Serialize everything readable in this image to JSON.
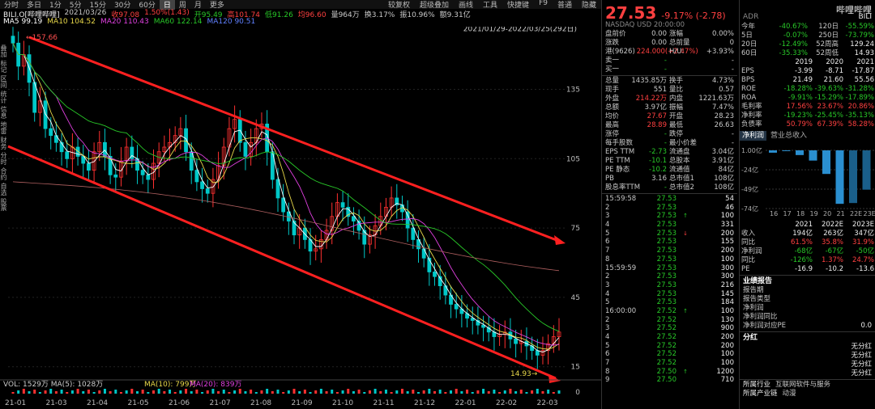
{
  "topbar": {
    "tabs": [
      "分时",
      "多日",
      "1分",
      "5分",
      "15分",
      "30分",
      "60分",
      "日",
      "周",
      "月",
      "更多"
    ],
    "active_tab": "日",
    "tools": [
      "较复权",
      "超级叠加",
      "画线",
      "工具",
      "快捷键",
      "F9",
      "普通",
      "隐藏"
    ]
  },
  "infobar": {
    "symbol": "BILI.O[哔哩哔哩]",
    "date": "2021/03/26",
    "close": "收97.08",
    "change": "1.50%(1.43)",
    "open": "开95.49",
    "high": "高101.74",
    "low": "低91.26",
    "avg": "均96.60",
    "vol": "量964万",
    "turn": "换3.17%",
    "amp": "振10.96%",
    "amt": "额9.31亿"
  },
  "mabar": [
    {
      "label": "MA5",
      "value": "99.19",
      "color": "#ffffff"
    },
    {
      "label": "MA10",
      "value": "104.52",
      "color": "#e8d84a"
    },
    {
      "label": "MA20",
      "value": "110.43",
      "color": "#e040e0"
    },
    {
      "label": "MA60",
      "value": "122.14",
      "color": "#28c828"
    },
    {
      "label": "MA120",
      "value": "90.51",
      "color": "#6080ff"
    }
  ],
  "chart_data": {
    "type": "candlestick",
    "range_label": "2021/01/29-2022/03/25(292日)",
    "y_ticks": [
      135,
      105,
      75,
      45,
      15
    ],
    "x_ticks": [
      "21-01",
      "21-03",
      "21-04",
      "21-05",
      "21-06",
      "21-07",
      "21-08",
      "21-09",
      "21-10",
      "21-11",
      "21-12",
      "22-01",
      "22-02",
      "22-03"
    ],
    "high_label": "157.66",
    "low_label": "14.93",
    "vol_label": "VOL: 1529万",
    "vol_ma5": "MA(5): 1028万",
    "vol_ma10": "MA(10): 799万",
    "vol_ma20": "MA(20): 839万",
    "vol_zero": "0",
    "closes": [
      155,
      145,
      150,
      138,
      125,
      130,
      118,
      115,
      112,
      108,
      105,
      110,
      106,
      103,
      100,
      108,
      112,
      106,
      98,
      97,
      104,
      110,
      105,
      100,
      98,
      96,
      103,
      108,
      110,
      112,
      115,
      118,
      108,
      100,
      95,
      92,
      90,
      96,
      102,
      110,
      118,
      122,
      112,
      106,
      112,
      118,
      120,
      108,
      96,
      88,
      82,
      78,
      72,
      75,
      70,
      65,
      66,
      70,
      74,
      80,
      86,
      84,
      80,
      78,
      74,
      68,
      72,
      76,
      80,
      84,
      88,
      85,
      82,
      75,
      70,
      66,
      62,
      56,
      54,
      50,
      46,
      42,
      40,
      38,
      36,
      35,
      33,
      32,
      30,
      28,
      29,
      30,
      27,
      25,
      26,
      24,
      22,
      20,
      22,
      25,
      28,
      30
    ]
  },
  "quote": {
    "price": "27.53",
    "change": "-9.17% (-2.78)",
    "name": "哔哩哔哩",
    "code": "BILI",
    "market": "NASDAQ  USD  20:00:00",
    "adr": "ADR"
  },
  "stats_a": [
    [
      "盘前价",
      "0.00",
      "涨幅",
      "0.00%"
    ],
    [
      "涨跌",
      "0.00",
      "总前量",
      "0"
    ],
    [
      "港(9626)",
      "224.000(+2.47%)",
      "H/U:",
      "+3.93%"
    ],
    [
      "卖一",
      "-",
      "",
      "-"
    ],
    [
      "买一",
      "-",
      "",
      "-"
    ]
  ],
  "stats_b": [
    [
      "总量",
      "1435.85万",
      "换手",
      "4.73%"
    ],
    [
      "现手",
      "551",
      "量比",
      "0.57"
    ],
    [
      "外盘",
      "214.22万",
      "内盘",
      "1221.63万"
    ],
    [
      "总额",
      "3.97亿",
      "振幅",
      "7.47%"
    ],
    [
      "均价",
      "27.67",
      "开盘",
      "28.23"
    ],
    [
      "最高",
      "28.89",
      "最低",
      "26.63"
    ],
    [
      "涨停",
      "-",
      "跌停",
      "-"
    ],
    [
      "每手股数",
      "-",
      "最小价差",
      "-"
    ],
    [
      "EPS TTM",
      "-2.73",
      "流通盘",
      "3.04亿"
    ],
    [
      "PE TTM",
      "-10.1",
      "总股本",
      "3.91亿"
    ],
    [
      "PE 静态",
      "-10.2",
      "流通值",
      "84亿"
    ],
    [
      "PB",
      "3.16",
      "总市值1",
      "108亿"
    ],
    [
      "股息率TTM",
      "-",
      "总市值2",
      "108亿"
    ]
  ],
  "ticks": [
    [
      "15:59:58",
      "27.53",
      "54",
      ""
    ],
    [
      "2",
      "27.53",
      "46",
      ""
    ],
    [
      "3",
      "27.53",
      "100",
      "up"
    ],
    [
      "4",
      "27.53",
      "331",
      ""
    ],
    [
      "5",
      "27.53",
      "200",
      "down"
    ],
    [
      "6",
      "27.53",
      "155",
      ""
    ],
    [
      "7",
      "27.53",
      "200",
      ""
    ],
    [
      "8",
      "27.53",
      "100",
      ""
    ],
    [
      "15:59:59",
      "27.53",
      "300",
      ""
    ],
    [
      "2",
      "27.53",
      "300",
      ""
    ],
    [
      "3",
      "27.53",
      "216",
      ""
    ],
    [
      "4",
      "27.53",
      "145",
      ""
    ],
    [
      "5",
      "27.53",
      "184",
      ""
    ],
    [
      "16:00:00",
      "27.52",
      "100",
      "up"
    ],
    [
      "2",
      "27.52",
      "130",
      ""
    ],
    [
      "3",
      "27.52",
      "900",
      ""
    ],
    [
      "4",
      "27.52",
      "200",
      ""
    ],
    [
      "5",
      "27.52",
      "200",
      ""
    ],
    [
      "6",
      "27.52",
      "100",
      ""
    ],
    [
      "7",
      "27.52",
      "100",
      ""
    ],
    [
      "8",
      "27.50",
      "1200",
      "up"
    ],
    [
      "9",
      "27.50",
      "710",
      ""
    ]
  ],
  "perf": [
    [
      "今年",
      "-40.67%",
      "120日",
      "-55.59%"
    ],
    [
      "5日",
      "-0.07%",
      "250日",
      "-73.79%"
    ],
    [
      "20日",
      "-12.49%",
      "52周高",
      "129.24"
    ],
    [
      "60日",
      "-35.33%",
      "52周低",
      "14.93"
    ]
  ],
  "fin_header": [
    "",
    "2019",
    "2020",
    "2021"
  ],
  "fin_rows": [
    [
      "EPS",
      "-3.99",
      "-8.71",
      "-17.87"
    ],
    [
      "BPS",
      "21.49",
      "21.60",
      "55.56"
    ],
    [
      "ROE",
      "-18.28%",
      "-39.63%",
      "-31.28%"
    ],
    [
      "ROA",
      "-9.91%",
      "-15.29%",
      "-17.89%"
    ],
    [
      "毛利率",
      "17.56%",
      "23.67%",
      "20.86%"
    ],
    [
      "净利率",
      "-19.23%",
      "-25.45%",
      "-35.13%"
    ],
    [
      "负债率",
      "50.79%",
      "67.39%",
      "58.28%"
    ]
  ],
  "net_profit": {
    "tab_active": "净利润",
    "tab_other": "营业总收入",
    "y_labels": [
      "1.00亿",
      "-24亿",
      "-49亿",
      "-74亿"
    ],
    "x_labels": [
      "16",
      "17",
      "18",
      "19",
      "20",
      "21",
      "22E",
      "23E"
    ],
    "values": [
      -3,
      -1,
      -6,
      -13,
      -30,
      -68,
      -67,
      -50
    ]
  },
  "forecast_header": [
    "",
    "2021",
    "2022E",
    "2023E"
  ],
  "forecast_rows": [
    [
      "收入",
      "194亿",
      "263亿",
      "347亿"
    ],
    [
      "同比",
      "61.5%",
      "35.8%",
      "31.9%"
    ],
    [
      "净利润",
      "-68亿",
      "-67亿",
      "-50亿"
    ],
    [
      "同比",
      "-126%",
      "1.37%",
      "24.7%"
    ],
    [
      "PE",
      "-16.9",
      "-10.2",
      "-13.6"
    ]
  ],
  "report": {
    "title": "业绩报告",
    "items": [
      "报告期",
      "报告类型",
      "净利润",
      "净利润同比",
      "净利润对应PE"
    ],
    "pe_value": "0.0"
  },
  "dividend": {
    "title": "分红",
    "items": [
      "无分红",
      "无分红",
      "无分红",
      "无分红"
    ]
  },
  "industry": {
    "label1": "所属行业",
    "value1": "互联网软件与服务",
    "label2": "所属产业链",
    "value2": "动漫"
  },
  "leftnav": [
    "叠加",
    "标记",
    "区间",
    "统计",
    "信息",
    "地雷",
    "财务",
    "分时",
    "合约",
    "自选",
    "股票"
  ]
}
